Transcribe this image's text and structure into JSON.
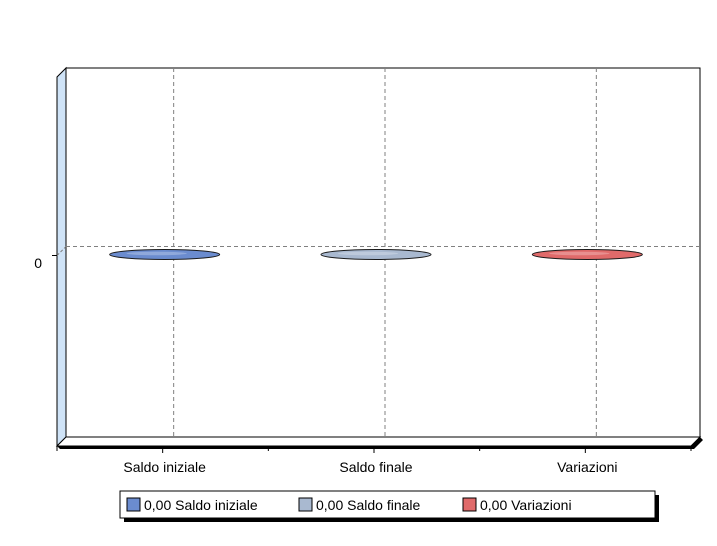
{
  "chart_data": {
    "type": "bar",
    "style": "3d-cylinder",
    "categories": [
      "Saldo iniziale",
      "Saldo finale",
      "Variazioni"
    ],
    "series": [
      {
        "name": "Saldo iniziale",
        "values": [
          0,
          null,
          null
        ],
        "color": "#6B8CCF",
        "legend_label": "0,00 Saldo iniziale"
      },
      {
        "name": "Saldo finale",
        "values": [
          null,
          0,
          null
        ],
        "color": "#A9B9D0",
        "legend_label": "0,00 Saldo finale"
      },
      {
        "name": "Variazioni",
        "values": [
          null,
          null,
          0
        ],
        "color": "#E06A6A",
        "legend_label": "0,00 Variazioni"
      }
    ],
    "y_ticks": [
      "0"
    ],
    "ylim": [
      -1,
      1
    ],
    "xlabel": "",
    "ylabel": "",
    "title": "",
    "grid": true,
    "legend_position": "bottom"
  }
}
